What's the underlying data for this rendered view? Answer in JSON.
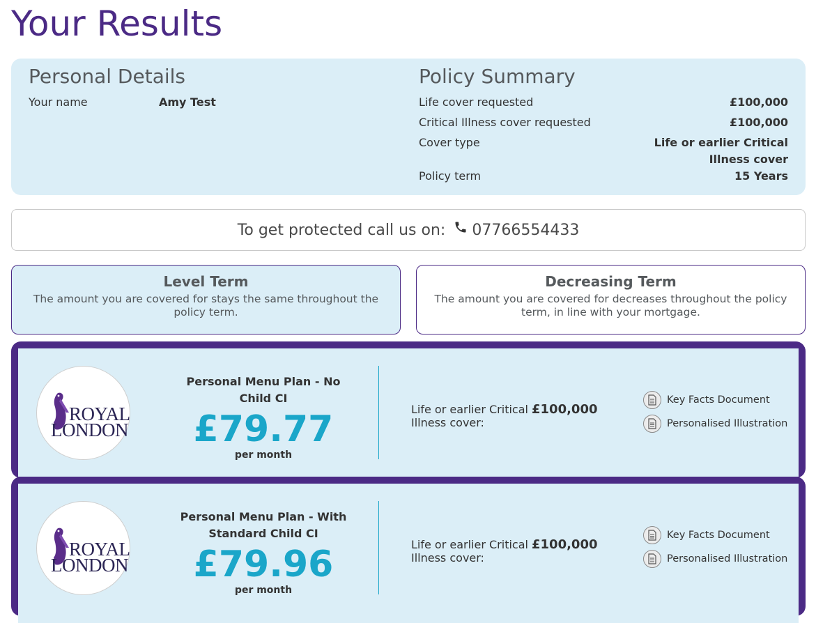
{
  "page": {
    "title": "Your Results"
  },
  "personal_details": {
    "heading": "Personal Details",
    "rows": [
      {
        "label": "Your name",
        "value": "Amy Test"
      }
    ]
  },
  "policy_summary": {
    "heading": "Policy Summary",
    "rows": [
      {
        "label": "Life cover requested",
        "value": "£100,000"
      },
      {
        "label": "Critical Illness cover requested",
        "value": "£100,000"
      },
      {
        "label": "Cover type",
        "value": "Life or earlier Critical Illness cover"
      },
      {
        "label": "Policy term",
        "value": "15 Years"
      }
    ]
  },
  "contact": {
    "prompt": "To get protected call us on:",
    "phone": "07766554433",
    "icon": "phone-icon"
  },
  "term_options": [
    {
      "title": "Level Term",
      "description": "The amount you are covered for stays the same throughout the policy term.",
      "selected": true
    },
    {
      "title": "Decreasing Term",
      "description": "The amount you are covered for decreases throughout the policy term, in line with your mortgage.",
      "selected": false
    }
  ],
  "quotes": [
    {
      "provider": "Royal London",
      "logo_text": [
        "ROYAL",
        "LONDON"
      ],
      "plan_name": "Personal Menu Plan - No Child CI",
      "price": "£79.77",
      "period": "per month",
      "cover_label": "Life or earlier Critical Illness cover:",
      "cover_value": "£100,000",
      "documents": [
        "Key Facts Document",
        "Personalised Illustration"
      ]
    },
    {
      "provider": "Royal London",
      "logo_text": [
        "ROYAL",
        "LONDON"
      ],
      "plan_name": "Personal Menu Plan - With Standard Child CI",
      "price": "£79.96",
      "period": "per month",
      "cover_label": "Life or earlier Critical Illness cover:",
      "cover_value": "£100,000",
      "documents": [
        "Key Facts Document",
        "Personalised Illustration"
      ]
    }
  ],
  "colors": {
    "brand_purple": "#4b2a85",
    "panel_blue": "#dbeef7",
    "price_teal": "#1aa6c9"
  }
}
